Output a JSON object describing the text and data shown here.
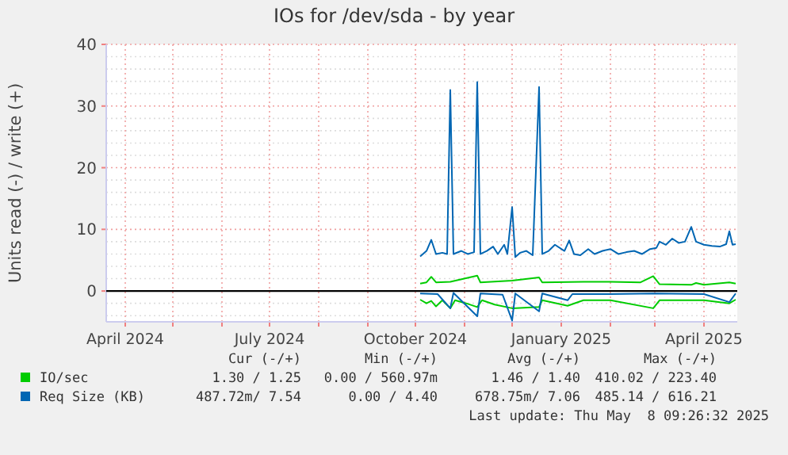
{
  "chart_data": {
    "type": "line",
    "title": "IOs for /dev/sda - by year",
    "ylabel": "Units read (-) / write (+)",
    "xlim": [
      "2024-03-20",
      "2025-04-22"
    ],
    "xticks": [
      {
        "value": "2024-04-01",
        "label": "April 2024"
      },
      {
        "value": "2024-05-01",
        "label": null
      },
      {
        "value": "2024-06-01",
        "label": null
      },
      {
        "value": "2024-07-01",
        "label": "July 2024"
      },
      {
        "value": "2024-08-01",
        "label": null
      },
      {
        "value": "2024-09-01",
        "label": null
      },
      {
        "value": "2024-10-01",
        "label": "October 2024"
      },
      {
        "value": "2024-11-01",
        "label": null
      },
      {
        "value": "2024-12-01",
        "label": null
      },
      {
        "value": "2025-01-01",
        "label": "January 2025"
      },
      {
        "value": "2025-02-01",
        "label": null
      },
      {
        "value": "2025-03-01",
        "label": null
      },
      {
        "value": "2025-04-01",
        "label": "April 2025"
      }
    ],
    "ylim": [
      -5,
      40
    ],
    "yticks": [
      {
        "value": -4,
        "label": null
      },
      {
        "value": -2,
        "label": null
      },
      0,
      {
        "value": 2,
        "label": null
      },
      {
        "value": 4,
        "label": null
      },
      {
        "value": 6,
        "label": null
      },
      {
        "value": 8,
        "label": null
      },
      10,
      {
        "value": 12,
        "label": null
      },
      {
        "value": 14,
        "label": null
      },
      {
        "value": 16,
        "label": null
      },
      {
        "value": 18,
        "label": null
      },
      20,
      {
        "value": 22,
        "label": null
      },
      {
        "value": 24,
        "label": null
      },
      {
        "value": 26,
        "label": null
      },
      {
        "value": 28,
        "label": null
      },
      30,
      {
        "value": 32,
        "label": null
      },
      {
        "value": 34,
        "label": null
      },
      {
        "value": 36,
        "label": null
      },
      {
        "value": 38,
        "label": null
      },
      40
    ],
    "grid": true,
    "legend": "bottom",
    "marker": "none",
    "line_style": "solid",
    "ref_lines": [
      {
        "axis": "y",
        "value": 0,
        "label": null,
        "color": "#000000"
      }
    ],
    "series": [
      {
        "color": "#00cc00",
        "x": [
          "2024-10-04",
          "2024-10-08",
          "2024-10-11",
          "2024-10-14",
          "2024-10-18",
          "2024-10-23",
          "2024-10-26",
          "2024-11-02",
          "2024-11-09",
          "2024-11-12",
          "2024-11-20",
          "2024-12-01",
          "2024-12-18",
          "2024-12-20",
          "2025-01-05",
          "2025-01-15",
          "2025-02-01",
          "2025-02-28",
          "2025-03-04",
          "2025-04-01",
          "2025-04-17",
          "2025-04-21"
        ],
        "values": [
          -1.4,
          -2.0,
          -1.6,
          -2.5,
          -1.5,
          -2.8,
          -1.5,
          -2.0,
          -2.6,
          -1.5,
          -2.2,
          -2.8,
          -2.6,
          -1.5,
          -2.4,
          -1.5,
          -1.5,
          -2.8,
          -1.5,
          -1.5,
          -2.0,
          -1.4
        ]
      },
      {
        "name": "IO/sec",
        "color": "#00cc00",
        "x": [
          "2024-10-04",
          "2024-10-08",
          "2024-10-11",
          "2024-10-14",
          "2024-10-23",
          "2024-11-09",
          "2024-11-11",
          "2024-12-01",
          "2024-12-18",
          "2024-12-20",
          "2025-01-15",
          "2025-02-01",
          "2025-02-20",
          "2025-02-28",
          "2025-03-04",
          "2025-03-24",
          "2025-03-27",
          "2025-04-01",
          "2025-04-17",
          "2025-04-21"
        ],
        "values": [
          1.2,
          1.4,
          2.3,
          1.4,
          1.5,
          2.5,
          1.4,
          1.7,
          2.2,
          1.4,
          1.5,
          1.5,
          1.4,
          2.4,
          1.1,
          1.0,
          1.3,
          1.0,
          1.4,
          1.2
        ]
      },
      {
        "color": "#0066b3",
        "x": [
          "2024-10-04",
          "2024-10-15",
          "2024-10-23",
          "2024-10-25",
          "2024-11-09",
          "2024-11-11",
          "2024-11-25",
          "2024-12-01",
          "2024-12-03",
          "2024-12-18",
          "2024-12-20",
          "2025-01-05",
          "2025-01-08",
          "2025-02-01",
          "2025-03-01",
          "2025-04-01",
          "2025-04-17",
          "2025-04-21"
        ],
        "values": [
          -0.4,
          -0.5,
          -2.8,
          -0.3,
          -4.1,
          -0.4,
          -0.6,
          -4.8,
          -0.4,
          -3.3,
          -0.4,
          -1.5,
          -0.5,
          -0.5,
          -0.4,
          -0.5,
          -1.8,
          -0.4
        ]
      },
      {
        "name": "Req Size (KB)",
        "color": "#0066b3",
        "x": [
          "2024-10-04",
          "2024-10-08",
          "2024-10-11",
          "2024-10-14",
          "2024-10-18",
          "2024-10-21",
          "2024-10-23",
          "2024-10-25",
          "2024-10-30",
          "2024-11-03",
          "2024-11-07",
          "2024-11-09",
          "2024-11-11",
          "2024-11-15",
          "2024-11-19",
          "2024-11-22",
          "2024-11-26",
          "2024-11-28",
          "2024-12-01",
          "2024-12-03",
          "2024-12-06",
          "2024-12-10",
          "2024-12-14",
          "2024-12-18",
          "2024-12-20",
          "2024-12-24",
          "2024-12-28",
          "2025-01-03",
          "2025-01-06",
          "2025-01-09",
          "2025-01-13",
          "2025-01-18",
          "2025-01-22",
          "2025-01-27",
          "2025-02-01",
          "2025-02-06",
          "2025-02-11",
          "2025-02-16",
          "2025-02-21",
          "2025-02-26",
          "2025-03-02",
          "2025-03-04",
          "2025-03-08",
          "2025-03-12",
          "2025-03-16",
          "2025-03-20",
          "2025-03-24",
          "2025-03-27",
          "2025-04-01",
          "2025-04-06",
          "2025-04-11",
          "2025-04-15",
          "2025-04-17",
          "2025-04-19",
          "2025-04-21"
        ],
        "values": [
          5.6,
          6.5,
          8.3,
          6.0,
          6.2,
          6.0,
          32.6,
          6.0,
          6.5,
          6.0,
          6.3,
          33.9,
          6.0,
          6.5,
          7.2,
          6.0,
          7.5,
          6.0,
          13.6,
          5.5,
          6.2,
          6.5,
          5.8,
          33.1,
          6.0,
          6.5,
          7.5,
          6.5,
          8.2,
          6.0,
          5.8,
          6.8,
          6.0,
          6.5,
          6.8,
          6.0,
          6.3,
          6.5,
          6.0,
          6.8,
          7.0,
          8.0,
          7.5,
          8.5,
          7.8,
          8.0,
          10.4,
          8.0,
          7.5,
          7.3,
          7.2,
          7.6,
          9.7,
          7.5,
          7.6
        ]
      }
    ],
    "annotations": [
      "Cur (-/+)",
      "Min (-/+)",
      "Avg (-/+)",
      "Max (-/+)",
      "1.30 / 1.25",
      "0.00 / 560.97m",
      "1.46 / 1.40",
      "410.02 / 223.40",
      "487.72m/ 7.54",
      "0.00 / 4.40",
      "678.75m/ 7.06",
      "485.14 / 616.21",
      "Last update: Thu May  8 09:26:32 2025"
    ]
  }
}
